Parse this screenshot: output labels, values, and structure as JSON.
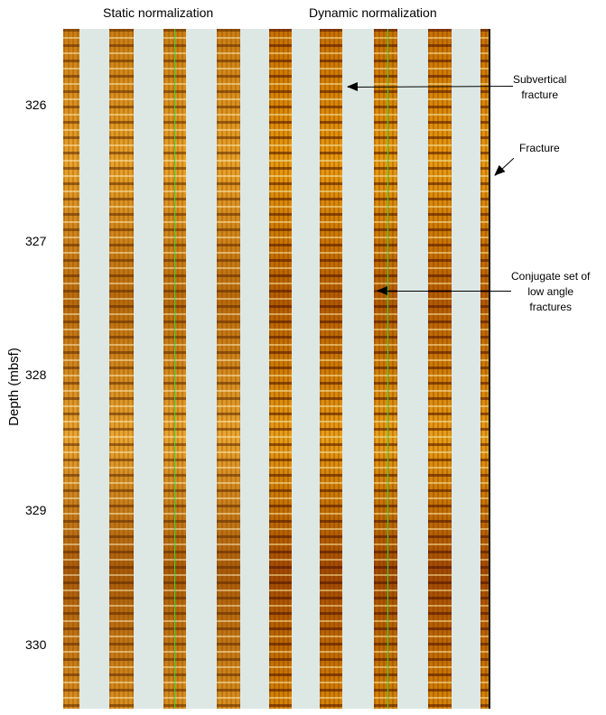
{
  "titles": {
    "static": "Static normalization",
    "dynamic": "Dynamic normalization"
  },
  "axis": {
    "label": "Depth (mbsf)",
    "ticks": [
      "326",
      "327",
      "328",
      "329",
      "330"
    ]
  },
  "annotations": {
    "subvertical": "Subvertical\nfracture",
    "fracture": "Fracture",
    "conjugate": "Conjugate set of\nlow angle\nfractures"
  },
  "colors": {
    "pad": "#d98f1e",
    "gap": "#dde8e5",
    "trace": "#2ee02e"
  }
}
